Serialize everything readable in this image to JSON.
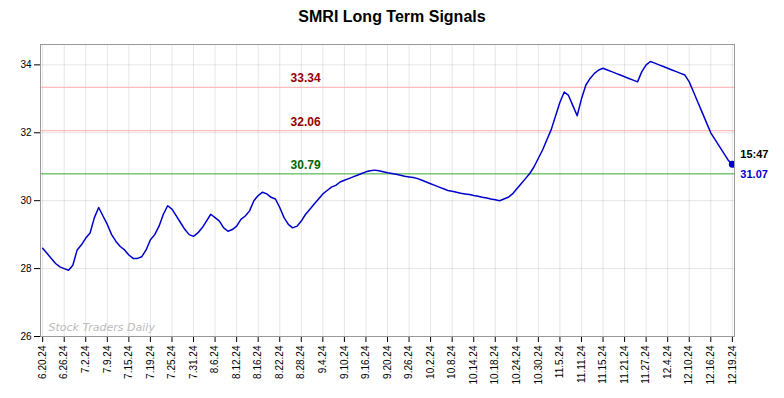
{
  "chart_data": {
    "type": "line",
    "title": "SMRI Long Term Signals",
    "categories": [
      "6.20.24",
      null,
      null,
      null,
      null,
      "6.26.24",
      null,
      null,
      null,
      null,
      "7.2.24",
      null,
      null,
      null,
      null,
      "7.9.24",
      null,
      null,
      null,
      null,
      "7.15.24",
      null,
      null,
      null,
      null,
      "7.19.24",
      null,
      null,
      null,
      null,
      "7.25.24",
      null,
      null,
      null,
      null,
      "7.31.24",
      null,
      null,
      null,
      null,
      "8.6.24",
      null,
      null,
      null,
      null,
      "8.12.24",
      null,
      null,
      null,
      null,
      "8.16.24",
      null,
      null,
      null,
      null,
      "8.22.24",
      null,
      null,
      null,
      null,
      "8.28.24",
      null,
      null,
      null,
      null,
      "9.4.24",
      null,
      null,
      null,
      null,
      "9.10.24",
      null,
      null,
      null,
      null,
      "9.16.24",
      null,
      null,
      null,
      null,
      "9.20.24",
      null,
      null,
      null,
      null,
      "9.26.24",
      null,
      null,
      null,
      null,
      "10.2.24",
      null,
      null,
      null,
      null,
      "10.8.24",
      null,
      null,
      null,
      null,
      "10.14.24",
      null,
      null,
      null,
      null,
      "10.18.24",
      null,
      null,
      null,
      null,
      "10.24.24",
      null,
      null,
      null,
      null,
      "10.30.24",
      null,
      null,
      null,
      null,
      "11.5.24",
      null,
      null,
      null,
      null,
      "11.11.24",
      null,
      null,
      null,
      null,
      "11.15.24",
      null,
      null,
      null,
      null,
      "11.21.24",
      null,
      null,
      null,
      null,
      "11.27.24",
      null,
      null,
      null,
      null,
      "12.4.24",
      null,
      null,
      null,
      null,
      "12.10.24",
      null,
      null,
      null,
      null,
      "12.16.24",
      null,
      null,
      null,
      null,
      "12.19.24"
    ],
    "values": [
      28.6,
      28.45,
      28.3,
      28.15,
      28.05,
      28.0,
      27.95,
      28.1,
      28.55,
      28.7,
      28.9,
      29.05,
      29.5,
      29.8,
      29.55,
      29.3,
      29.0,
      28.8,
      28.65,
      28.55,
      28.4,
      28.3,
      28.3,
      28.35,
      28.55,
      28.85,
      29.0,
      29.25,
      29.6,
      29.85,
      29.75,
      29.55,
      29.35,
      29.15,
      29.0,
      28.95,
      29.05,
      29.2,
      29.4,
      29.6,
      29.5,
      29.4,
      29.2,
      29.1,
      29.15,
      29.25,
      29.45,
      29.55,
      29.7,
      30.0,
      30.15,
      30.25,
      30.2,
      30.1,
      30.05,
      29.8,
      29.5,
      29.3,
      29.2,
      29.25,
      29.4,
      29.6,
      29.75,
      29.9,
      30.05,
      30.2,
      30.3,
      30.4,
      30.45,
      30.55,
      30.6,
      30.65,
      30.7,
      30.75,
      30.8,
      30.85,
      30.88,
      30.9,
      30.88,
      30.85,
      30.82,
      30.8,
      30.78,
      30.75,
      30.72,
      30.7,
      30.68,
      30.65,
      30.6,
      30.55,
      30.5,
      30.45,
      30.4,
      30.35,
      30.3,
      30.28,
      30.25,
      30.22,
      30.2,
      30.18,
      30.15,
      30.13,
      30.1,
      30.08,
      30.05,
      30.03,
      30.0,
      30.05,
      30.1,
      30.2,
      30.35,
      30.5,
      30.65,
      30.8,
      31.0,
      31.25,
      31.5,
      31.8,
      32.1,
      32.5,
      32.9,
      33.2,
      33.1,
      32.8,
      32.5,
      33.0,
      33.4,
      33.6,
      33.75,
      33.85,
      33.9,
      33.85,
      33.8,
      33.75,
      33.7,
      33.65,
      33.6,
      33.55,
      33.5,
      33.8,
      34.0,
      34.1,
      34.05,
      34.0,
      33.95,
      33.9,
      33.85,
      33.8,
      33.75,
      33.7,
      33.5,
      33.2,
      32.9,
      32.6,
      32.3,
      32.0,
      31.8,
      31.6,
      31.4,
      31.2,
      31.07
    ],
    "color": "#0000cc",
    "ylim": [
      26,
      34.6
    ],
    "yticks": [
      26,
      28,
      30,
      32,
      34
    ],
    "grid": true,
    "hlines": [
      {
        "value": 33.34,
        "color": "#ffaaaa",
        "label": "33.34",
        "label_color": "#990000"
      },
      {
        "value": 32.06,
        "color": "#ffaaaa",
        "label": "32.06",
        "label_color": "#990000"
      },
      {
        "value": 30.79,
        "color": "#33aa33",
        "label": "30.79",
        "label_color": "#006600"
      }
    ],
    "annotations": [
      {
        "text": "Stock Traders Daily",
        "color": "#bbbbbb"
      }
    ],
    "last_point_labels": [
      "15:47",
      "31.07"
    ]
  }
}
